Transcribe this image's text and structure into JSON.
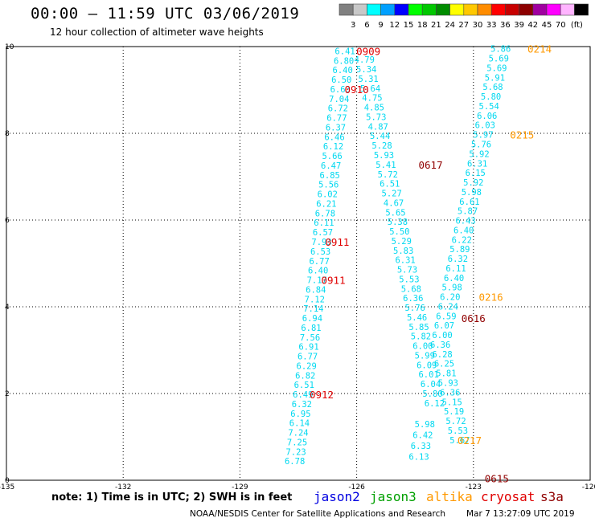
{
  "title": "00:00 – 11:59 UTC 03/06/2019",
  "subtitle": "12 hour collection of altimeter wave heights",
  "colorbar": {
    "unit_label": "(ft)",
    "bins": [
      {
        "label": "",
        "color": "#808080"
      },
      {
        "label": "3",
        "color": "#c8c8c8"
      },
      {
        "label": "6",
        "color": "#00ffff"
      },
      {
        "label": "9",
        "color": "#00a0ff"
      },
      {
        "label": "12",
        "color": "#0000ff"
      },
      {
        "label": "15",
        "color": "#00ff00"
      },
      {
        "label": "18",
        "color": "#00c800"
      },
      {
        "label": "21",
        "color": "#008c00"
      },
      {
        "label": "24",
        "color": "#ffff00"
      },
      {
        "label": "27",
        "color": "#ffc800"
      },
      {
        "label": "30",
        "color": "#ff8c00"
      },
      {
        "label": "33",
        "color": "#ff0000"
      },
      {
        "label": "36",
        "color": "#c80000"
      },
      {
        "label": "39",
        "color": "#8c0000"
      },
      {
        "label": "42",
        "color": "#a000a0"
      },
      {
        "label": "45",
        "color": "#ff00ff"
      },
      {
        "label": "70",
        "color": "#ffb4ff"
      },
      {
        "label": "",
        "color": "#000000"
      }
    ]
  },
  "chart_data": {
    "type": "scatter",
    "xlim": [
      -135,
      -120
    ],
    "ylim": [
      0,
      10
    ],
    "xticks": [
      "-135",
      "-132",
      "-129",
      "-126",
      "-123",
      "-120"
    ],
    "yticks": [
      "0",
      "2",
      "4",
      "6",
      "8",
      "10"
    ],
    "grid": true,
    "value_color": "#00d8f0",
    "tracks": [
      {
        "name": "west-track",
        "points": [
          {
            "x": -126.3,
            "y": 9.9,
            "v": "6.41"
          },
          {
            "x": -126.33,
            "y": 9.68,
            "v": "6.80"
          },
          {
            "x": -126.36,
            "y": 9.46,
            "v": "6.40"
          },
          {
            "x": -126.39,
            "y": 9.24,
            "v": "6.50"
          },
          {
            "x": -126.42,
            "y": 9.02,
            "v": "6.63"
          },
          {
            "x": -126.45,
            "y": 8.8,
            "v": "7.04"
          },
          {
            "x": -126.48,
            "y": 8.58,
            "v": "6.72"
          },
          {
            "x": -126.51,
            "y": 8.36,
            "v": "6.77"
          },
          {
            "x": -126.54,
            "y": 8.14,
            "v": "6.37"
          },
          {
            "x": -126.57,
            "y": 7.92,
            "v": "6.46"
          },
          {
            "x": -126.6,
            "y": 7.7,
            "v": "6.12"
          },
          {
            "x": -126.63,
            "y": 7.48,
            "v": "5.66"
          },
          {
            "x": -126.66,
            "y": 7.26,
            "v": "6.47"
          },
          {
            "x": -126.69,
            "y": 7.04,
            "v": "6.85"
          },
          {
            "x": -126.72,
            "y": 6.82,
            "v": "5.56"
          },
          {
            "x": -126.75,
            "y": 6.6,
            "v": "6.02"
          },
          {
            "x": -126.78,
            "y": 6.38,
            "v": "6.21"
          },
          {
            "x": -126.81,
            "y": 6.16,
            "v": "6.78"
          },
          {
            "x": -126.84,
            "y": 5.94,
            "v": "6.11"
          },
          {
            "x": -126.87,
            "y": 5.72,
            "v": "6.57"
          },
          {
            "x": -126.9,
            "y": 5.5,
            "v": "7.93"
          },
          {
            "x": -126.93,
            "y": 5.28,
            "v": "6.53"
          },
          {
            "x": -126.96,
            "y": 5.06,
            "v": "6.77"
          },
          {
            "x": -126.99,
            "y": 4.84,
            "v": "6.40"
          },
          {
            "x": -127.02,
            "y": 4.62,
            "v": "7.17"
          },
          {
            "x": -127.05,
            "y": 4.4,
            "v": "6.84"
          },
          {
            "x": -127.08,
            "y": 4.18,
            "v": "7.12"
          },
          {
            "x": -127.11,
            "y": 3.96,
            "v": "7.14"
          },
          {
            "x": -127.14,
            "y": 3.74,
            "v": "6.94"
          },
          {
            "x": -127.17,
            "y": 3.52,
            "v": "6.81"
          },
          {
            "x": -127.2,
            "y": 3.3,
            "v": "7.56"
          },
          {
            "x": -127.23,
            "y": 3.08,
            "v": "6.91"
          },
          {
            "x": -127.26,
            "y": 2.86,
            "v": "6.77"
          },
          {
            "x": -127.29,
            "y": 2.64,
            "v": "6.29"
          },
          {
            "x": -127.32,
            "y": 2.42,
            "v": "6.82"
          },
          {
            "x": -127.35,
            "y": 2.2,
            "v": "6.51"
          },
          {
            "x": -127.38,
            "y": 1.98,
            "v": "6.49"
          },
          {
            "x": -127.41,
            "y": 1.76,
            "v": "6.32"
          },
          {
            "x": -127.44,
            "y": 1.54,
            "v": "6.95"
          },
          {
            "x": -127.47,
            "y": 1.32,
            "v": "6.14"
          },
          {
            "x": -127.5,
            "y": 1.1,
            "v": "7.24"
          },
          {
            "x": -127.53,
            "y": 0.88,
            "v": "7.25"
          },
          {
            "x": -127.56,
            "y": 0.66,
            "v": "7.23"
          },
          {
            "x": -127.59,
            "y": 0.44,
            "v": "6.78"
          }
        ]
      },
      {
        "name": "middle-track",
        "points": [
          {
            "x": -125.8,
            "y": 9.7,
            "v": "4.79"
          },
          {
            "x": -125.75,
            "y": 9.48,
            "v": "5.34"
          },
          {
            "x": -125.7,
            "y": 9.26,
            "v": "5.31"
          },
          {
            "x": -125.65,
            "y": 9.04,
            "v": "5.64"
          },
          {
            "x": -125.6,
            "y": 8.82,
            "v": "4.75"
          },
          {
            "x": -125.55,
            "y": 8.6,
            "v": "4.85"
          },
          {
            "x": -125.5,
            "y": 8.38,
            "v": "5.73"
          },
          {
            "x": -125.45,
            "y": 8.16,
            "v": "4.87"
          },
          {
            "x": -125.4,
            "y": 7.94,
            "v": "5.44"
          },
          {
            "x": -125.35,
            "y": 7.72,
            "v": "5.28"
          },
          {
            "x": -125.3,
            "y": 7.5,
            "v": "5.93"
          },
          {
            "x": -125.25,
            "y": 7.28,
            "v": "5.41"
          },
          {
            "x": -125.2,
            "y": 7.06,
            "v": "5.72"
          },
          {
            "x": -125.15,
            "y": 6.84,
            "v": "6.51"
          },
          {
            "x": -125.1,
            "y": 6.62,
            "v": "5.27"
          },
          {
            "x": -125.05,
            "y": 6.4,
            "v": "4.67"
          },
          {
            "x": -125.0,
            "y": 6.18,
            "v": "5.65"
          },
          {
            "x": -124.95,
            "y": 5.96,
            "v": "5.38"
          },
          {
            "x": -124.9,
            "y": 5.74,
            "v": "5.50"
          },
          {
            "x": -124.85,
            "y": 5.52,
            "v": "5.29"
          },
          {
            "x": -124.8,
            "y": 5.3,
            "v": "5.83"
          },
          {
            "x": -124.75,
            "y": 5.08,
            "v": "6.31"
          },
          {
            "x": -124.7,
            "y": 4.86,
            "v": "5.73"
          },
          {
            "x": -124.65,
            "y": 4.64,
            "v": "5.53"
          },
          {
            "x": -124.6,
            "y": 4.42,
            "v": "5.68"
          },
          {
            "x": -124.55,
            "y": 4.2,
            "v": "6.36"
          },
          {
            "x": -124.5,
            "y": 3.98,
            "v": "5.76"
          },
          {
            "x": -124.45,
            "y": 3.76,
            "v": "5.46"
          },
          {
            "x": -124.4,
            "y": 3.54,
            "v": "5.85"
          },
          {
            "x": -124.35,
            "y": 3.32,
            "v": "5.82"
          },
          {
            "x": -124.3,
            "y": 3.1,
            "v": "6.00"
          },
          {
            "x": -124.25,
            "y": 2.88,
            "v": "5.99"
          },
          {
            "x": -124.2,
            "y": 2.66,
            "v": "6.09"
          },
          {
            "x": -124.15,
            "y": 2.44,
            "v": "6.01"
          },
          {
            "x": -124.1,
            "y": 2.22,
            "v": "6.04"
          },
          {
            "x": -124.05,
            "y": 2.0,
            "v": "5.80"
          },
          {
            "x": -124.0,
            "y": 1.78,
            "v": "6.12"
          },
          {
            "x": -124.25,
            "y": 1.3,
            "v": "5.98"
          },
          {
            "x": -124.3,
            "y": 1.05,
            "v": "6.42"
          },
          {
            "x": -124.35,
            "y": 0.8,
            "v": "6.33"
          },
          {
            "x": -124.4,
            "y": 0.55,
            "v": "6.13"
          }
        ]
      },
      {
        "name": "east-track",
        "points": [
          {
            "x": -122.3,
            "y": 9.95,
            "v": "5.86"
          },
          {
            "x": -122.35,
            "y": 9.73,
            "v": "5.69"
          },
          {
            "x": -122.4,
            "y": 9.51,
            "v": "5.69"
          },
          {
            "x": -122.45,
            "y": 9.29,
            "v": "5.91"
          },
          {
            "x": -122.5,
            "y": 9.07,
            "v": "5.68"
          },
          {
            "x": -122.55,
            "y": 8.85,
            "v": "5.80"
          },
          {
            "x": -122.6,
            "y": 8.63,
            "v": "5.54"
          },
          {
            "x": -122.65,
            "y": 8.41,
            "v": "6.06"
          },
          {
            "x": -122.7,
            "y": 8.19,
            "v": "6.03"
          },
          {
            "x": -122.75,
            "y": 7.97,
            "v": "5.97"
          },
          {
            "x": -122.8,
            "y": 7.75,
            "v": "5.76"
          },
          {
            "x": -122.85,
            "y": 7.53,
            "v": "5.92"
          },
          {
            "x": -122.9,
            "y": 7.31,
            "v": "6.31"
          },
          {
            "x": -122.95,
            "y": 7.09,
            "v": "6.15"
          },
          {
            "x": -123.0,
            "y": 6.87,
            "v": "5.92"
          },
          {
            "x": -123.05,
            "y": 6.65,
            "v": "5.98"
          },
          {
            "x": -123.1,
            "y": 6.43,
            "v": "6.61"
          },
          {
            "x": -123.15,
            "y": 6.21,
            "v": "5.87"
          },
          {
            "x": -123.2,
            "y": 5.99,
            "v": "6.43"
          },
          {
            "x": -123.25,
            "y": 5.77,
            "v": "6.40"
          },
          {
            "x": -123.3,
            "y": 5.55,
            "v": "6.22"
          },
          {
            "x": -123.35,
            "y": 5.33,
            "v": "5.89"
          },
          {
            "x": -123.4,
            "y": 5.11,
            "v": "6.32"
          },
          {
            "x": -123.45,
            "y": 4.89,
            "v": "6.11"
          },
          {
            "x": -123.5,
            "y": 4.67,
            "v": "6.40"
          },
          {
            "x": -123.55,
            "y": 4.45,
            "v": "5.98"
          },
          {
            "x": -123.6,
            "y": 4.23,
            "v": "6.20"
          },
          {
            "x": -123.65,
            "y": 4.01,
            "v": "6.24"
          },
          {
            "x": -123.7,
            "y": 3.79,
            "v": "6.59"
          },
          {
            "x": -123.75,
            "y": 3.57,
            "v": "6.07"
          },
          {
            "x": -123.8,
            "y": 3.35,
            "v": "6.00"
          },
          {
            "x": -123.85,
            "y": 3.13,
            "v": "6.36"
          },
          {
            "x": -123.8,
            "y": 2.91,
            "v": "6.28"
          },
          {
            "x": -123.75,
            "y": 2.69,
            "v": "6.25"
          },
          {
            "x": -123.7,
            "y": 2.47,
            "v": "5.81"
          },
          {
            "x": -123.65,
            "y": 2.25,
            "v": "5.93"
          },
          {
            "x": -123.6,
            "y": 2.03,
            "v": "6.36"
          },
          {
            "x": -123.55,
            "y": 1.81,
            "v": "5.15"
          },
          {
            "x": -123.5,
            "y": 1.59,
            "v": "5.19"
          },
          {
            "x": -123.45,
            "y": 1.37,
            "v": "5.72"
          },
          {
            "x": -123.4,
            "y": 1.15,
            "v": "5.53"
          },
          {
            "x": -123.35,
            "y": 0.93,
            "v": "5.67"
          }
        ]
      }
    ],
    "time_labels": [
      {
        "x": -125.7,
        "y": 9.9,
        "text": "0909",
        "color": "#e00000"
      },
      {
        "x": -126.0,
        "y": 9.02,
        "text": "0910",
        "color": "#e00000"
      },
      {
        "x": -126.5,
        "y": 5.5,
        "text": "0911",
        "color": "#e00000"
      },
      {
        "x": -126.6,
        "y": 4.62,
        "text": "0911",
        "color": "#e00000"
      },
      {
        "x": -126.9,
        "y": 1.98,
        "text": "0912",
        "color": "#e00000"
      },
      {
        "x": -121.3,
        "y": 9.95,
        "text": "0214",
        "color": "#ff9900"
      },
      {
        "x": -121.75,
        "y": 7.97,
        "text": "0215",
        "color": "#ff9900"
      },
      {
        "x": -122.55,
        "y": 4.23,
        "text": "0216",
        "color": "#ff9900"
      },
      {
        "x": -123.1,
        "y": 0.93,
        "text": "0217",
        "color": "#ff9900"
      },
      {
        "x": -124.1,
        "y": 7.28,
        "text": "0617",
        "color": "#900000"
      },
      {
        "x": -123.0,
        "y": 3.74,
        "text": "0616",
        "color": "#900000"
      },
      {
        "x": -122.4,
        "y": 0.05,
        "text": "0615",
        "color": "#900000"
      }
    ]
  },
  "footer": {
    "note": "note: 1) Time is in UTC; 2) SWH is in feet",
    "satellites": [
      {
        "name": "jason2",
        "color": "#0000e0"
      },
      {
        "name": "jason3",
        "color": "#00a000"
      },
      {
        "name": "altika",
        "color": "#ff9900"
      },
      {
        "name": "cryosat",
        "color": "#e00000"
      },
      {
        "name": "s3a",
        "color": "#900000"
      }
    ],
    "credit": "NOAA/NESDIS Center for Satellite Applications and Research",
    "timestamp": "Mar  7 13:27:09 UTC 2019"
  }
}
